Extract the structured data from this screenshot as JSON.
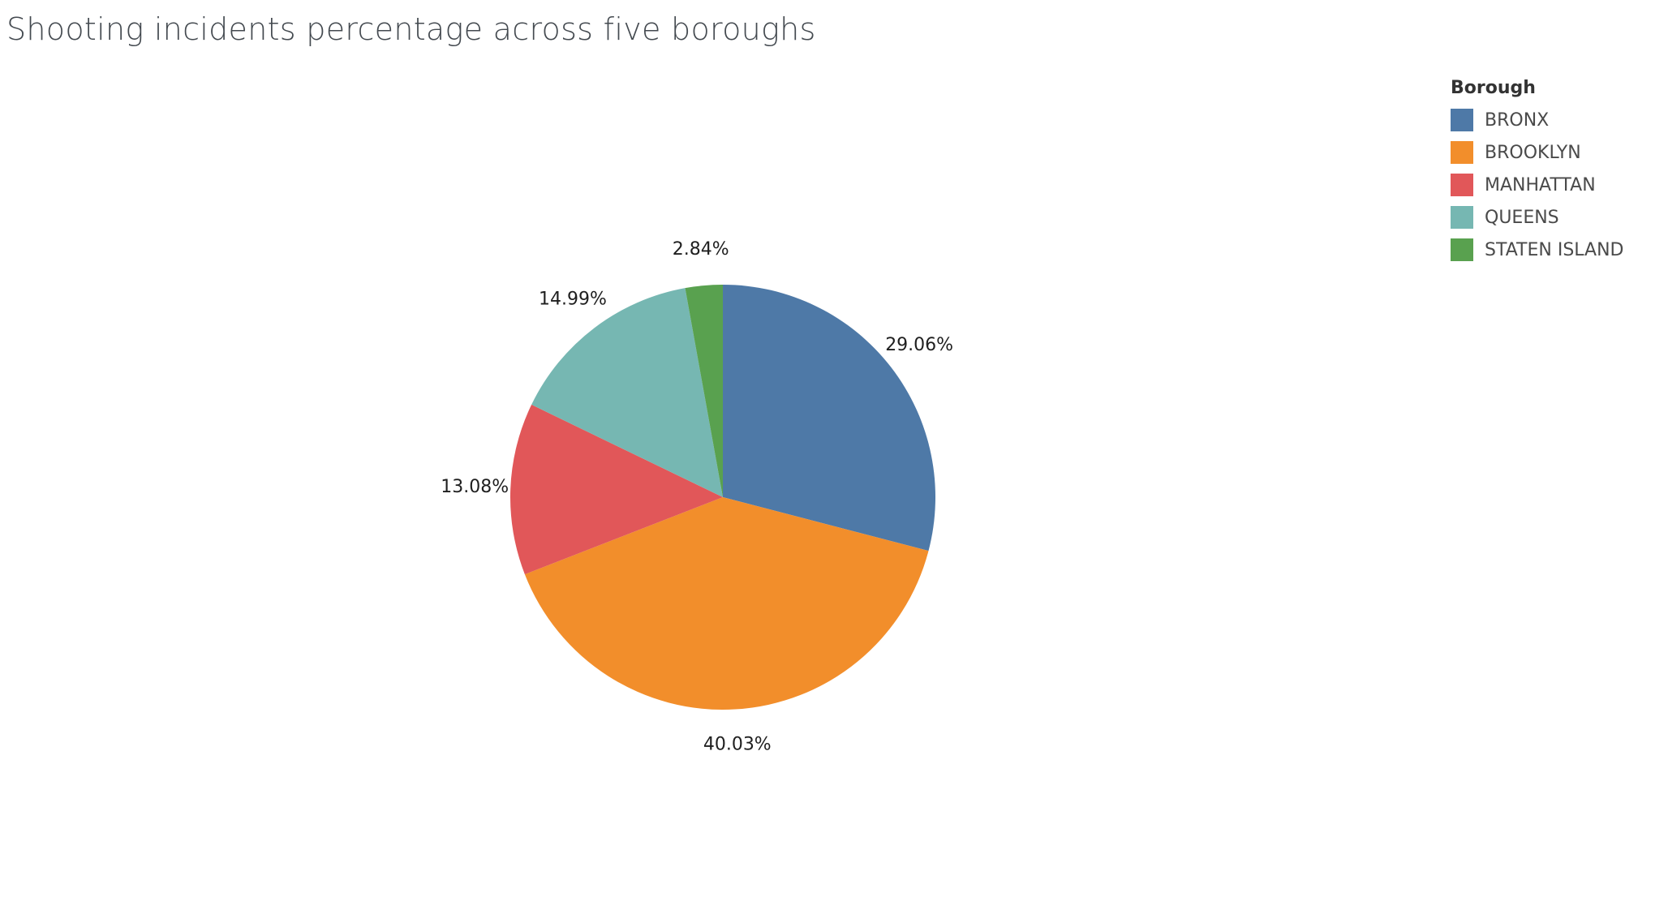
{
  "title": "Shooting incidents percentage across five boroughs",
  "legend": {
    "title": "Borough"
  },
  "chart_data": {
    "type": "pie",
    "title": "Shooting incidents percentage across five boroughs",
    "legend_title": "Borough",
    "legend_position": "top-right",
    "categories": [
      "BRONX",
      "BROOKLYN",
      "MANHATTAN",
      "QUEENS",
      "STATEN ISLAND"
    ],
    "values": [
      29.06,
      40.03,
      13.08,
      14.99,
      2.84
    ],
    "labels": [
      "29.06%",
      "40.03%",
      "13.08%",
      "14.99%",
      "2.84%"
    ],
    "colors": [
      "#4e79a7",
      "#f28e2b",
      "#e15759",
      "#76b7b2",
      "#59a14f"
    ],
    "start": "12 o'clock",
    "direction": "clockwise"
  }
}
